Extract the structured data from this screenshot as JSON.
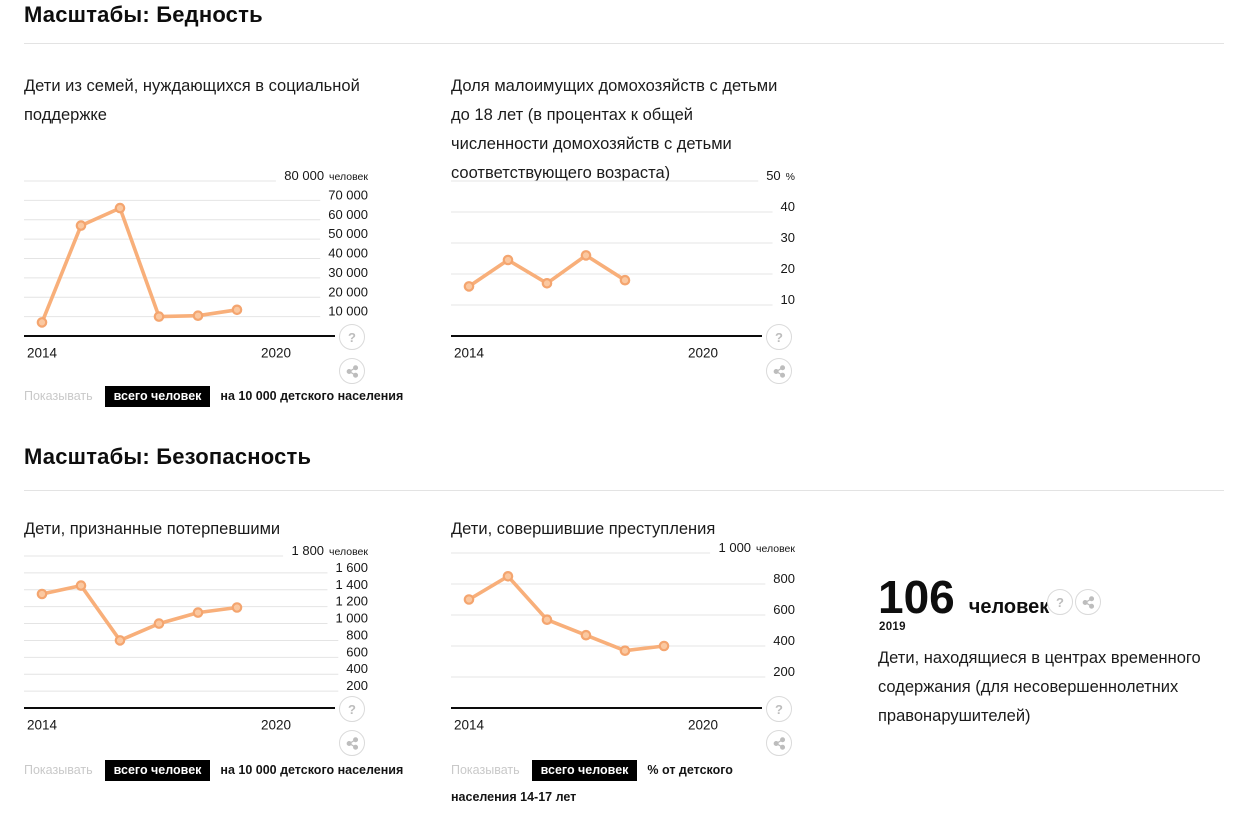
{
  "sections": [
    {
      "title": "Масштабы: Бедность"
    },
    {
      "title": "Масштабы: Безопасность"
    }
  ],
  "icons": {
    "help": "?",
    "share": "share-nodes"
  },
  "colors": {
    "line": "#F8AF7A",
    "toggle_active_bg": "#000000",
    "toggle_active_text": "#FFFFFF",
    "gridline": "#E4E4E4"
  },
  "toggles": [
    {
      "show": "Показывать",
      "active": "всего человек",
      "alt": "на 10 000 детского населения"
    },
    {
      "show": "Показывать",
      "active": "всего человек",
      "alt": "на 10 000 детского населения"
    },
    {
      "show": "Показывать",
      "active": "всего человек",
      "alt": "% от детского населения 14-17 лет"
    }
  ],
  "stat": {
    "value": "106",
    "unit": "человек",
    "year": "2019",
    "description": "Дети, находящиеся в центрах временного содержания (для несовершеннолетних правонарушителей)"
  },
  "chart_data": [
    {
      "type": "line",
      "title": "Дети из семей, нуждающихся в социальной поддержке",
      "x": [
        2014,
        2015,
        2016,
        2017,
        2018,
        2019
      ],
      "values": [
        7000,
        57000,
        66000,
        10000,
        10500,
        13500
      ],
      "ylabel_unit": "человек",
      "ylim": [
        0,
        80000
      ],
      "grid": true,
      "legend": false,
      "y_ticks": [
        {
          "label": "80 000",
          "suffix": "человек",
          "value": 80000
        },
        {
          "label": "70 000",
          "value": 70000
        },
        {
          "label": "60 000",
          "value": 60000
        },
        {
          "label": "50 000",
          "value": 50000
        },
        {
          "label": "40 000",
          "value": 40000
        },
        {
          "label": "30 000",
          "value": 30000
        },
        {
          "label": "20 000",
          "value": 20000
        },
        {
          "label": "10 000",
          "value": 10000
        }
      ],
      "x_axis_labels": [
        "2014",
        "2020"
      ]
    },
    {
      "type": "line",
      "title": "Доля малоимущих домохозяйств с детьми до 18 лет (в процентах к общей численности домохозяйств с детьми соответствующего возраста)",
      "x": [
        2014,
        2015,
        2016,
        2017,
        2018
      ],
      "values": [
        16,
        24.5,
        17,
        26,
        18
      ],
      "ylabel_unit": "%",
      "ylim": [
        0,
        50
      ],
      "grid": true,
      "legend": false,
      "y_ticks": [
        {
          "label": "50",
          "suffix": "%",
          "value": 50
        },
        {
          "label": "40",
          "value": 40
        },
        {
          "label": "30",
          "value": 30
        },
        {
          "label": "20",
          "value": 20
        },
        {
          "label": "10",
          "value": 10
        }
      ],
      "x_axis_labels": [
        "2014",
        "2020"
      ]
    },
    {
      "type": "line",
      "title": "Дети, признанные потерпевшими",
      "x": [
        2014,
        2015,
        2016,
        2017,
        2018,
        2019
      ],
      "values": [
        1350,
        1450,
        800,
        1000,
        1130,
        1190
      ],
      "ylabel_unit": "человек",
      "ylim": [
        0,
        1800
      ],
      "grid": true,
      "legend": false,
      "y_ticks": [
        {
          "label": "1 800",
          "suffix": "человек",
          "value": 1800
        },
        {
          "label": "1 600",
          "value": 1600
        },
        {
          "label": "1 400",
          "value": 1400
        },
        {
          "label": "1 200",
          "value": 1200
        },
        {
          "label": "1 000",
          "value": 1000
        },
        {
          "label": "800",
          "value": 800
        },
        {
          "label": "600",
          "value": 600
        },
        {
          "label": "400",
          "value": 400
        },
        {
          "label": "200",
          "value": 200
        }
      ],
      "x_axis_labels": [
        "2014",
        "2020"
      ]
    },
    {
      "type": "line",
      "title": "Дети, совершившие преступления",
      "x": [
        2014,
        2015,
        2016,
        2017,
        2018,
        2019
      ],
      "values": [
        700,
        850,
        570,
        470,
        370,
        400
      ],
      "ylabel_unit": "человек",
      "ylim": [
        0,
        1000
      ],
      "grid": true,
      "legend": false,
      "y_ticks": [
        {
          "label": "1 000",
          "suffix": "человек",
          "value": 1000
        },
        {
          "label": "800",
          "value": 800
        },
        {
          "label": "600",
          "value": 600
        },
        {
          "label": "400",
          "value": 400
        },
        {
          "label": "200",
          "value": 200
        }
      ],
      "x_axis_labels": [
        "2014",
        "2020"
      ]
    }
  ]
}
